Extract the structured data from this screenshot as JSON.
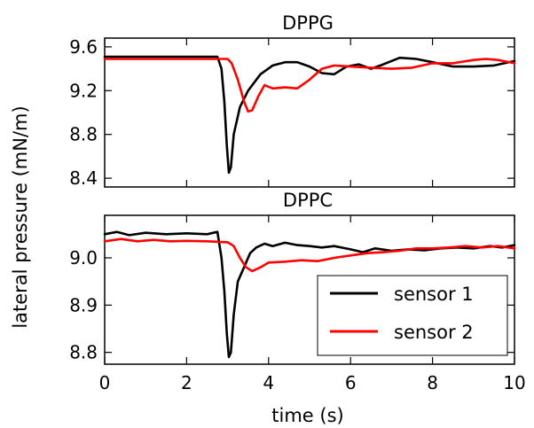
{
  "chart_data": [
    {
      "type": "line",
      "title": "DPPG",
      "xlabel": "time (s)",
      "ylabel": "lateral pressure (mN/m)",
      "xlim": [
        0,
        10
      ],
      "ylim": [
        8.32,
        9.68
      ],
      "xticks": [
        0,
        2,
        4,
        6,
        8,
        10
      ],
      "yticks": [
        8.4,
        8.8,
        9.2,
        9.6
      ],
      "ytick_labels": [
        "8.4",
        "8.8",
        "9.2",
        "9.6"
      ],
      "grid": false,
      "series": [
        {
          "name": "sensor 1",
          "color": "#000000",
          "points": [
            [
              0,
              9.51
            ],
            [
              1,
              9.51
            ],
            [
              2,
              9.51
            ],
            [
              2.75,
              9.51
            ],
            [
              2.85,
              9.4
            ],
            [
              2.92,
              9.1
            ],
            [
              2.98,
              8.7
            ],
            [
              3.03,
              8.45
            ],
            [
              3.08,
              8.5
            ],
            [
              3.15,
              8.8
            ],
            [
              3.3,
              9.05
            ],
            [
              3.5,
              9.2
            ],
            [
              3.8,
              9.35
            ],
            [
              4.1,
              9.43
            ],
            [
              4.4,
              9.46
            ],
            [
              4.7,
              9.46
            ],
            [
              5.0,
              9.42
            ],
            [
              5.3,
              9.36
            ],
            [
              5.6,
              9.35
            ],
            [
              5.9,
              9.42
            ],
            [
              6.2,
              9.44
            ],
            [
              6.5,
              9.4
            ],
            [
              6.8,
              9.44
            ],
            [
              7.2,
              9.5
            ],
            [
              7.6,
              9.49
            ],
            [
              8.0,
              9.46
            ],
            [
              8.5,
              9.42
            ],
            [
              9.0,
              9.42
            ],
            [
              9.5,
              9.43
            ],
            [
              10,
              9.47
            ]
          ]
        },
        {
          "name": "sensor 2",
          "color": "#ff0000",
          "points": [
            [
              0,
              9.49
            ],
            [
              1,
              9.49
            ],
            [
              2,
              9.49
            ],
            [
              3.0,
              9.49
            ],
            [
              3.1,
              9.45
            ],
            [
              3.25,
              9.3
            ],
            [
              3.4,
              9.1
            ],
            [
              3.5,
              9.01
            ],
            [
              3.6,
              9.02
            ],
            [
              3.75,
              9.15
            ],
            [
              3.9,
              9.25
            ],
            [
              4.1,
              9.22
            ],
            [
              4.4,
              9.23
            ],
            [
              4.7,
              9.22
            ],
            [
              5.0,
              9.3
            ],
            [
              5.3,
              9.4
            ],
            [
              5.6,
              9.43
            ],
            [
              6.0,
              9.42
            ],
            [
              6.5,
              9.41
            ],
            [
              7.0,
              9.4
            ],
            [
              7.5,
              9.41
            ],
            [
              8.0,
              9.45
            ],
            [
              8.5,
              9.45
            ],
            [
              9.0,
              9.48
            ],
            [
              9.3,
              9.49
            ],
            [
              9.6,
              9.48
            ],
            [
              10,
              9.45
            ]
          ]
        }
      ]
    },
    {
      "type": "line",
      "title": "DPPC",
      "xlabel": "time (s)",
      "ylabel": "lateral pressure (mN/m)",
      "xlim": [
        0,
        10
      ],
      "ylim": [
        8.775,
        9.09
      ],
      "xticks": [
        0,
        2,
        4,
        6,
        8,
        10
      ],
      "xtick_labels": [
        "0",
        "2",
        "4",
        "6",
        "8",
        "10"
      ],
      "yticks": [
        8.8,
        8.9,
        9.0
      ],
      "ytick_labels": [
        "8.8",
        "8.9",
        "9.0"
      ],
      "grid": false,
      "legend": "bottom-right",
      "series": [
        {
          "name": "sensor 1",
          "color": "#000000",
          "points": [
            [
              0,
              9.05
            ],
            [
              0.3,
              9.055
            ],
            [
              0.6,
              9.048
            ],
            [
              1.0,
              9.053
            ],
            [
              1.5,
              9.05
            ],
            [
              2.0,
              9.052
            ],
            [
              2.5,
              9.05
            ],
            [
              2.75,
              9.055
            ],
            [
              2.85,
              9.0
            ],
            [
              2.92,
              8.93
            ],
            [
              2.98,
              8.84
            ],
            [
              3.03,
              8.79
            ],
            [
              3.08,
              8.8
            ],
            [
              3.15,
              8.88
            ],
            [
              3.25,
              8.95
            ],
            [
              3.4,
              8.98
            ],
            [
              3.55,
              9.01
            ],
            [
              3.7,
              9.022
            ],
            [
              3.9,
              9.03
            ],
            [
              4.1,
              9.025
            ],
            [
              4.4,
              9.032
            ],
            [
              4.7,
              9.027
            ],
            [
              5.0,
              9.025
            ],
            [
              5.3,
              9.022
            ],
            [
              5.6,
              9.025
            ],
            [
              6.0,
              9.018
            ],
            [
              6.3,
              9.012
            ],
            [
              6.6,
              9.02
            ],
            [
              7.0,
              9.015
            ],
            [
              7.4,
              9.018
            ],
            [
              7.8,
              9.016
            ],
            [
              8.2,
              9.02
            ],
            [
              8.6,
              9.022
            ],
            [
              9.0,
              9.02
            ],
            [
              9.4,
              9.025
            ],
            [
              9.7,
              9.022
            ],
            [
              10,
              9.027
            ]
          ]
        },
        {
          "name": "sensor 2",
          "color": "#ff0000",
          "points": [
            [
              0,
              9.035
            ],
            [
              0.4,
              9.04
            ],
            [
              0.8,
              9.035
            ],
            [
              1.2,
              9.038
            ],
            [
              1.6,
              9.035
            ],
            [
              2.0,
              9.036
            ],
            [
              2.5,
              9.035
            ],
            [
              3.0,
              9.033
            ],
            [
              3.15,
              9.025
            ],
            [
              3.3,
              9.0
            ],
            [
              3.45,
              8.98
            ],
            [
              3.6,
              8.972
            ],
            [
              3.8,
              8.98
            ],
            [
              4.0,
              8.99
            ],
            [
              4.4,
              8.992
            ],
            [
              4.8,
              8.995
            ],
            [
              5.2,
              8.993
            ],
            [
              5.6,
              9.0
            ],
            [
              6.0,
              9.005
            ],
            [
              6.4,
              9.01
            ],
            [
              6.8,
              9.012
            ],
            [
              7.2,
              9.015
            ],
            [
              7.6,
              9.02
            ],
            [
              8.0,
              9.02
            ],
            [
              8.4,
              9.022
            ],
            [
              8.8,
              9.025
            ],
            [
              9.2,
              9.022
            ],
            [
              9.6,
              9.025
            ],
            [
              10,
              9.02
            ]
          ]
        }
      ]
    }
  ],
  "legend": {
    "entries": [
      {
        "label": "sensor 1",
        "color": "#000000"
      },
      {
        "label": "sensor 2",
        "color": "#ff0000"
      }
    ]
  }
}
